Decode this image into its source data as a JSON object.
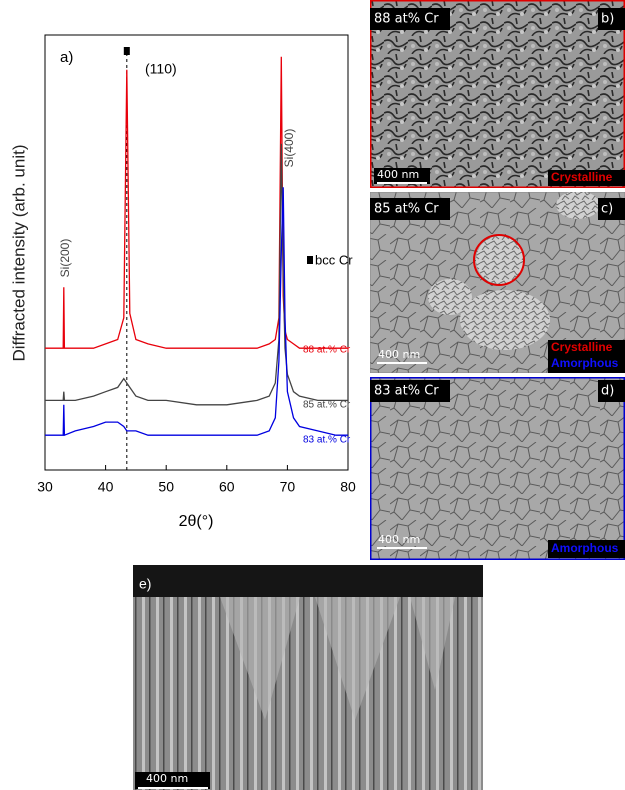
{
  "chart_data": {
    "type": "line",
    "y_label": "Diffracted intensity (arb. unit)",
    "x_label": "2θ(°)",
    "xlim": [
      30,
      80
    ],
    "xticks": [
      30,
      40,
      50,
      60,
      70,
      80
    ],
    "ylim": [
      0,
      100
    ],
    "x": [
      30,
      32,
      33,
      33.1,
      33.2,
      35,
      38,
      40,
      42,
      43,
      43.5,
      44,
      45,
      47,
      50,
      55,
      60,
      65,
      67,
      68,
      68.6,
      69,
      69.3,
      69.6,
      70,
      71,
      72,
      75,
      78,
      80
    ],
    "series": [
      {
        "name": "88 at.% Cr",
        "color": "#e8000b",
        "values": [
          28,
          28,
          28,
          42,
          28,
          28,
          28,
          29,
          30,
          35,
          92,
          36,
          30,
          29,
          28,
          28,
          28,
          28,
          29,
          30,
          35,
          95,
          40,
          32,
          30,
          29,
          28,
          28,
          28,
          28
        ]
      },
      {
        "name": "85 at.% Cr",
        "color": "#444444",
        "values": [
          16,
          16,
          16,
          18,
          16,
          16,
          17,
          18,
          19,
          21,
          20,
          19,
          17,
          16,
          16,
          15,
          15,
          16,
          17,
          20,
          30,
          75,
          45,
          28,
          22,
          18,
          17,
          16,
          16,
          16
        ]
      },
      {
        "name": "83 at.% Cr",
        "color": "#0000e0",
        "values": [
          8,
          8,
          8,
          15,
          8,
          9,
          10,
          11,
          11,
          10,
          9,
          9,
          9,
          8,
          8,
          8,
          8,
          8,
          9,
          12,
          25,
          50,
          65,
          35,
          18,
          12,
          10,
          9,
          8,
          8
        ]
      }
    ],
    "annotations": {
      "panel": "a)",
      "peak": "(110)",
      "si200": "Si(200)",
      "si400": "Si(400)",
      "phase": "bcc Cr"
    }
  },
  "panels": [
    {
      "composition": "88 at% Cr",
      "label": "b)",
      "scale": "400 nm",
      "phases": [
        "Crystalline"
      ]
    },
    {
      "composition": "85 at% Cr",
      "label": "c)",
      "scale": "400 nm",
      "phases": [
        "Crystalline",
        "Amorphous"
      ]
    },
    {
      "composition": "83 at% Cr",
      "label": "d)",
      "scale": "400 nm",
      "phases": [
        "Amorphous"
      ]
    }
  ],
  "cross_section": {
    "label": "e)",
    "scale": "400 nm"
  }
}
